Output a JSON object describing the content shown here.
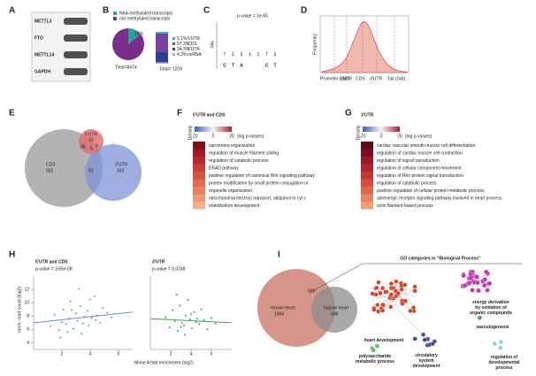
{
  "panel_a": {
    "label": "A",
    "proteins": [
      "METTL3",
      "FTO",
      "METTL14",
      "GAPDH"
    ]
  },
  "panel_b": {
    "label": "B",
    "legend": [
      "N6A-methylated transcripts",
      "not methylated transcripts"
    ],
    "colors": [
      "#2aa198",
      "#7b2d8e"
    ],
    "pie_values": [
      14,
      86
    ],
    "pie_label": "14%",
    "pie_total": "Total=8474",
    "bar_segments": [
      {
        "name": "5'UTR",
        "value": 5.1,
        "label": "5.1%",
        "color": "#35b6a6"
      },
      {
        "name": "CDS",
        "value": 57.3,
        "label": "57.3%",
        "color": "#7b3fa0"
      },
      {
        "name": "3'UTR",
        "value": 34.3,
        "label": "34.3%",
        "color": "#2d3f8f"
      },
      {
        "name": "ncRNA",
        "value": 4.3,
        "label": "4.3%",
        "color": "#a9b4d0"
      }
    ],
    "bar_total": "Total= 1209"
  },
  "panel_c": {
    "label": "C",
    "pvalue": "p-value = 1e-65",
    "ylabel": "bits",
    "letters": [
      "T",
      "G",
      "G",
      "A",
      "C",
      "T",
      "G"
    ],
    "lower": [
      "C",
      "T",
      "A",
      "",
      "",
      "C",
      "T"
    ]
  },
  "panel_d": {
    "label": "D",
    "ylabel": "Frequency",
    "xlabels": [
      "Promoter (1kb)",
      "5'UTR",
      "CDS",
      "3'UTR",
      "Tail (1kb)"
    ],
    "density": [
      0.02,
      0.03,
      0.05,
      0.07,
      0.1,
      0.14,
      0.2,
      0.3,
      0.45,
      0.62,
      0.8,
      0.95,
      1,
      0.93,
      0.78,
      0.6,
      0.44,
      0.3,
      0.2,
      0.13,
      0.08,
      0.05,
      0.03,
      0.02,
      0.01
    ]
  },
  "panel_e": {
    "label": "E",
    "sets": [
      {
        "name": "CDS",
        "count": 582
      },
      {
        "name": "5'UTR",
        "count": 33
      },
      {
        "name": "3'UTR",
        "count": 342
      }
    ],
    "overlaps": {
      "cds_5utr": 38,
      "all": 5,
      "utr5_utr3": 9,
      "cds_utr3": 82
    }
  },
  "panel_f": {
    "label": "F",
    "title": "5'UTR and CDS",
    "colorbar_title": "Density",
    "colorbar_ticks": [
      -20,
      0,
      20
    ],
    "colorbar_label": "(log p-values)",
    "terms": [
      "sarcomere organization",
      "regulation of muscle filament sliding",
      "regulation of catabolic process",
      "ERAD pathway",
      "positive regulation of canonical Wnt signaling pathway",
      "protein modification by small protein conjugation or",
      "organelle organization",
      "mitochondrial electron transport, ubiquinol to cyt c",
      "endothelium development"
    ],
    "colors": [
      "#7a1020",
      "#9c1a28",
      "#b52a2e",
      "#c63d34",
      "#d4533e",
      "#de6b4c",
      "#e6825e",
      "#eb9a75",
      "#f0b28f"
    ]
  },
  "panel_g": {
    "label": "G",
    "title": "3'UTR",
    "colorbar_title": "Density",
    "colorbar_ticks": [
      -20,
      0,
      20
    ],
    "colorbar_label": "(log p-values)",
    "terms": [
      "cardiac vascular smooth muscle cell differentiation",
      "regulation of cardiac muscle cell contraction",
      "regulation of signal transduction",
      "regulation of cellular component movement",
      "regulation of Rho protein signal transduction",
      "regulation of catabolic process",
      "positive regulation of cellular protein metabolic process",
      "adrenergic receptor signaling pathway involved in heart process",
      "actin filament-based process"
    ],
    "colors": [
      "#5e0a18",
      "#7a1020",
      "#961a28",
      "#ad282e",
      "#c23a34",
      "#d1503d",
      "#dc694b",
      "#e6845f",
      "#eea07b"
    ]
  },
  "panel_h": {
    "label": "H",
    "ylabel": "norm. read count (log2)",
    "xlabel": "N6me A fold enrichment (log2)",
    "ylim": [
      3,
      14
    ],
    "yticks": [
      4,
      6,
      8,
      10,
      12
    ],
    "charts": [
      {
        "title": "5'UTR and CDS",
        "pvalue": "p-value = 3.65e-08",
        "color": "#6b8fc9",
        "xlim": [
          0,
          7
        ],
        "xticks": [
          2,
          4,
          6
        ],
        "x": [
          1.2,
          1.5,
          1.8,
          2.0,
          2.1,
          2.3,
          2.5,
          2.6,
          2.8,
          3.0,
          3.1,
          3.3,
          3.4,
          3.6,
          3.8,
          3.9,
          4.1,
          4.3,
          4.5,
          4.7,
          4.9,
          5.2,
          5.5,
          1.9,
          2.7,
          3.5,
          4.0,
          4.4,
          3.2,
          2.4
        ],
        "y": [
          6.5,
          8.2,
          5.9,
          7.1,
          9.0,
          6.8,
          7.6,
          10.2,
          6.1,
          8.4,
          7.3,
          9.5,
          5.4,
          7.9,
          8.8,
          6.6,
          7.7,
          11.0,
          8.1,
          7.0,
          9.2,
          8.5,
          7.8,
          4.8,
          8.9,
          6.9,
          10.5,
          7.4,
          12.1,
          5.6
        ],
        "fit": [
          7.0,
          8.6
        ]
      },
      {
        "title": "3'UTR",
        "pvalue": "p-value = 0.3248",
        "color": "#3aa84a",
        "xlim": [
          0,
          8
        ],
        "xticks": [
          2,
          4,
          6
        ],
        "x": [
          1.5,
          1.9,
          2.2,
          2.4,
          2.7,
          2.9,
          3.1,
          3.3,
          3.5,
          3.7,
          3.9,
          4.1,
          4.3,
          4.5,
          4.8,
          5.0,
          5.3,
          5.6,
          6.0,
          6.4,
          2.6,
          3.4,
          4.0,
          4.6,
          3.0
        ],
        "y": [
          7.8,
          6.3,
          8.9,
          7.2,
          5.8,
          9.6,
          7.0,
          6.6,
          8.1,
          10.4,
          7.5,
          6.2,
          8.6,
          7.1,
          6.8,
          9.0,
          7.4,
          6.0,
          7.7,
          6.9,
          11.2,
          5.2,
          8.3,
          7.6,
          6.4
        ],
        "fit": [
          7.6,
          7.0
        ]
      }
    ]
  },
  "panel_i": {
    "label": "I",
    "sets": [
      {
        "name": "mouse heart",
        "count": 1996,
        "color": "#cc7b6d"
      },
      {
        "name": "human heart",
        "count": 688,
        "color": "#8c8c8c"
      }
    ],
    "overlap": 588,
    "title": "GO categories in “Biological Process”",
    "clusters": [
      {
        "name": "heart development",
        "color": "#d9412b"
      },
      {
        "name": "circulatory system development",
        "color": "#3b4aa5"
      },
      {
        "name": "polysaccharide metabolic process",
        "color": "#5bbf5b"
      },
      {
        "name": "energy derivation by oxidation of organic compounds",
        "color": "#c23bb0"
      },
      {
        "name": "vasculogenesis",
        "color": "#3aa84a"
      },
      {
        "name": "regulation of developmental process",
        "color": "#8fd3c9"
      }
    ]
  }
}
